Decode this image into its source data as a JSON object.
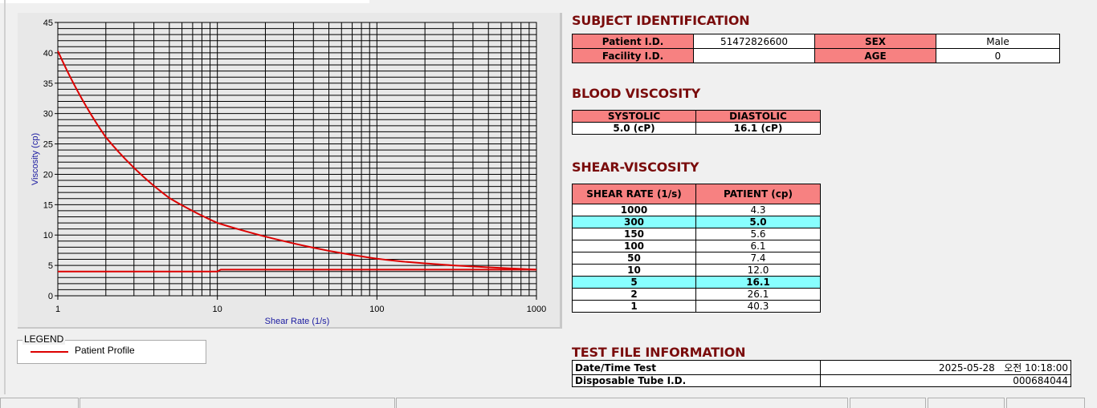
{
  "chart_data": {
    "type": "line",
    "xlabel": "Shear Rate (1/s)",
    "ylabel": "Viscosity (cp)",
    "xscale": "log",
    "xlim": [
      1,
      1000
    ],
    "ylim": [
      0,
      45
    ],
    "xticks": [
      "1",
      "10",
      "100",
      "1000"
    ],
    "yticks": [
      "0",
      "5",
      "10",
      "15",
      "20",
      "25",
      "30",
      "35",
      "40",
      "45"
    ],
    "grid": true,
    "legend_position": "bottom-left",
    "series": [
      {
        "name": "Patient Profile",
        "color": "#dd0000",
        "x": [
          1,
          2,
          5,
          10,
          50,
          100,
          150,
          300,
          1000
        ],
        "y": [
          40.3,
          26.1,
          16.1,
          12.0,
          7.4,
          6.1,
          5.6,
          5.0,
          4.3
        ]
      },
      {
        "color": "#dd0000",
        "x": [
          1,
          10,
          10.5,
          1000
        ],
        "y": [
          4.0,
          4.0,
          4.3,
          4.3
        ]
      }
    ]
  },
  "legend": {
    "title": "LEGEND",
    "items": [
      "Patient Profile"
    ]
  },
  "subject": {
    "title": "SUBJECT IDENTIFICATION",
    "patient_id_label": "Patient I.D.",
    "patient_id": "51472826600",
    "sex_label": "SEX",
    "sex": "Male",
    "facility_id_label": "Facility I.D.",
    "facility_id": "",
    "age_label": "AGE",
    "age": "0"
  },
  "blood": {
    "title": "BLOOD VISCOSITY",
    "systolic_label": "SYSTOLIC",
    "diastolic_label": "DIASTOLIC",
    "systolic": "5.0 (cP)",
    "diastolic": "16.1 (cP)"
  },
  "shear": {
    "title": "SHEAR-VISCOSITY",
    "col1": "SHEAR RATE (1/s)",
    "col2": "PATIENT (cp)",
    "rows": [
      [
        "1000",
        "4.3"
      ],
      [
        "300",
        "5.0"
      ],
      [
        "150",
        "5.6"
      ],
      [
        "100",
        "6.1"
      ],
      [
        "50",
        "7.4"
      ],
      [
        "10",
        "12.0"
      ],
      [
        "5",
        "16.1"
      ],
      [
        "2",
        "26.1"
      ],
      [
        "1",
        "40.3"
      ]
    ],
    "highlight": [
      "300",
      "5"
    ],
    "highlight_color": "#88ffff"
  },
  "testfile": {
    "title": "TEST FILE INFORMATION",
    "date_label": "Date/Time Test",
    "date": "2025-05-28   오전 10:18:00",
    "tube_label": "Disposable Tube I.D.",
    "tube": "000684044"
  },
  "colors": {
    "header_bg": "#f78181",
    "section_title": "#7a0c0c"
  }
}
